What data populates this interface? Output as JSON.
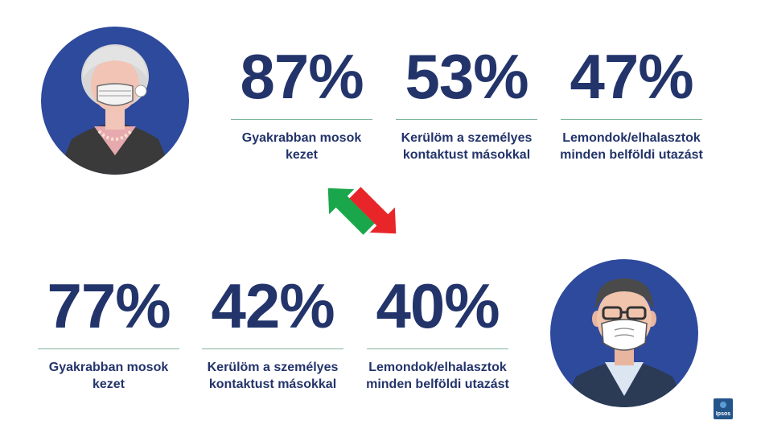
{
  "top_stats": [
    {
      "value": "87%",
      "label_line1": "Gyakrabban mosok",
      "label_line2": "kezet"
    },
    {
      "value": "53%",
      "label_line1": "Kerülöm a személyes",
      "label_line2": "kontaktust másokkal"
    },
    {
      "value": "47%",
      "label_line1": "Lemondok/elhalasztok",
      "label_line2": "minden belföldi utazást"
    }
  ],
  "bottom_stats": [
    {
      "value": "77%",
      "label_line1": "Gyakrabban mosok",
      "label_line2": "kezet"
    },
    {
      "value": "42%",
      "label_line1": "Kerülöm a személyes",
      "label_line2": "kontaktust másokkal"
    },
    {
      "value": "40%",
      "label_line1": "Lemondok/elhalasztok",
      "label_line2": "minden belföldi utazást"
    }
  ],
  "logo": {
    "text": "Ipsos"
  },
  "icons": [
    "elderly-woman-mask-icon",
    "man-mask-icon",
    "exchange-arrows-icon"
  ],
  "colors": {
    "text": "#23346b",
    "circle": "#2e4a9c",
    "rule": "#7fb59a",
    "arrow_up": "#1aa64b",
    "arrow_down": "#e8262a"
  }
}
